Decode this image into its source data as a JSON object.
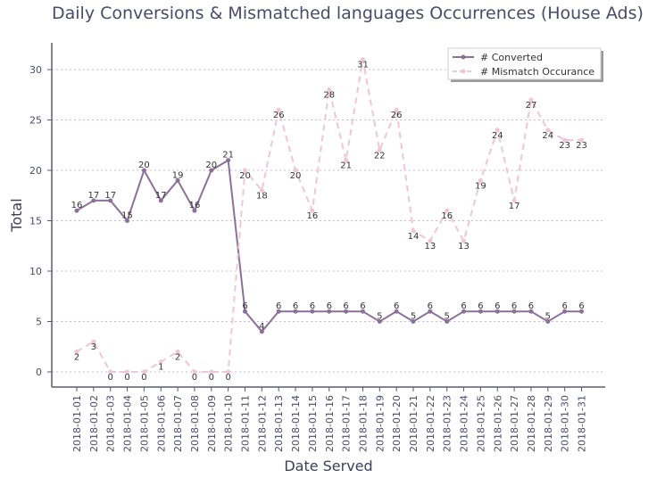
{
  "chart_data": {
    "type": "line",
    "title": "Daily Conversions & Mismatched languages Occurrences (House Ads)",
    "xlabel": "Date Served",
    "ylabel": "Total",
    "ylim": [
      -1.5,
      32.5
    ],
    "yticks": [
      0,
      5,
      10,
      15,
      20,
      25,
      30
    ],
    "grid": "horizontal dotted",
    "legend_position": "top-right",
    "categories": [
      "2018-01-01",
      "2018-01-02",
      "2018-01-03",
      "2018-01-04",
      "2018-01-05",
      "2018-01-06",
      "2018-01-07",
      "2018-01-08",
      "2018-01-09",
      "2018-01-10",
      "2018-01-11",
      "2018-01-12",
      "2018-01-13",
      "2018-01-14",
      "2018-01-15",
      "2018-01-16",
      "2018-01-17",
      "2018-01-18",
      "2018-01-19",
      "2018-01-20",
      "2018-01-21",
      "2018-01-22",
      "2018-01-23",
      "2018-01-24",
      "2018-01-25",
      "2018-01-26",
      "2018-01-27",
      "2018-01-28",
      "2018-01-29",
      "2018-01-30",
      "2018-01-31"
    ],
    "series": [
      {
        "name": "# Converted",
        "color": "#8b7098",
        "style": "solid",
        "values": [
          16,
          17,
          17,
          15,
          20,
          17,
          19,
          16,
          20,
          21,
          6,
          4,
          6,
          6,
          6,
          6,
          6,
          6,
          5,
          6,
          5,
          6,
          5,
          6,
          6,
          6,
          6,
          6,
          5,
          6,
          6
        ]
      },
      {
        "name": "# Mismatch Occurance",
        "color": "#efc6d6",
        "style": "dashed",
        "values": [
          2,
          3,
          0,
          0,
          0,
          1,
          2,
          0,
          0,
          0,
          20,
          18,
          26,
          20,
          16,
          28,
          21,
          31,
          22,
          26,
          14,
          13,
          16,
          13,
          19,
          24,
          17,
          27,
          24,
          23,
          23
        ]
      }
    ]
  }
}
